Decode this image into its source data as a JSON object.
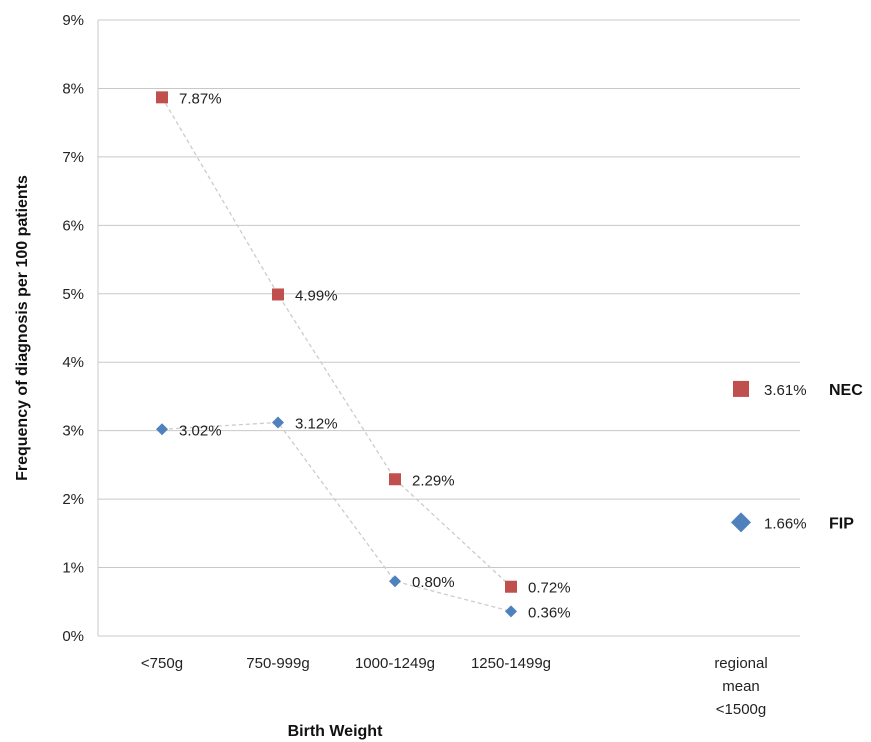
{
  "chart_data": {
    "type": "scatter",
    "ylabel": "Frequency of diagnosis per 100 patients",
    "xlabel": "Birth Weight",
    "ylim": [
      0,
      9
    ],
    "yticks": [
      "0%",
      "1%",
      "2%",
      "3%",
      "4%",
      "5%",
      "6%",
      "7%",
      "8%",
      "9%"
    ],
    "grid": "horizontal",
    "categories": [
      [
        "<750g"
      ],
      [
        "750-999g"
      ],
      [
        "1000-1249g"
      ],
      [
        "1250-1499g"
      ],
      [
        "regional",
        "mean",
        "<1500g"
      ]
    ],
    "series": [
      {
        "name": "NEC",
        "color": "#c0504d",
        "marker": "square",
        "values": [
          7.87,
          4.99,
          2.29,
          0.72
        ],
        "labels": [
          "7.87%",
          "4.99%",
          "2.29%",
          "0.72%"
        ],
        "mean": 3.61,
        "mean_label": "3.61%"
      },
      {
        "name": "FIP",
        "color": "#4f81bd",
        "marker": "diamond",
        "values": [
          3.02,
          3.12,
          0.8,
          0.36
        ],
        "labels": [
          "3.02%",
          "3.12%",
          "0.80%",
          "0.36%"
        ],
        "mean": 1.66,
        "mean_label": "1.66%"
      }
    ],
    "connector_color": "#cccccc"
  }
}
